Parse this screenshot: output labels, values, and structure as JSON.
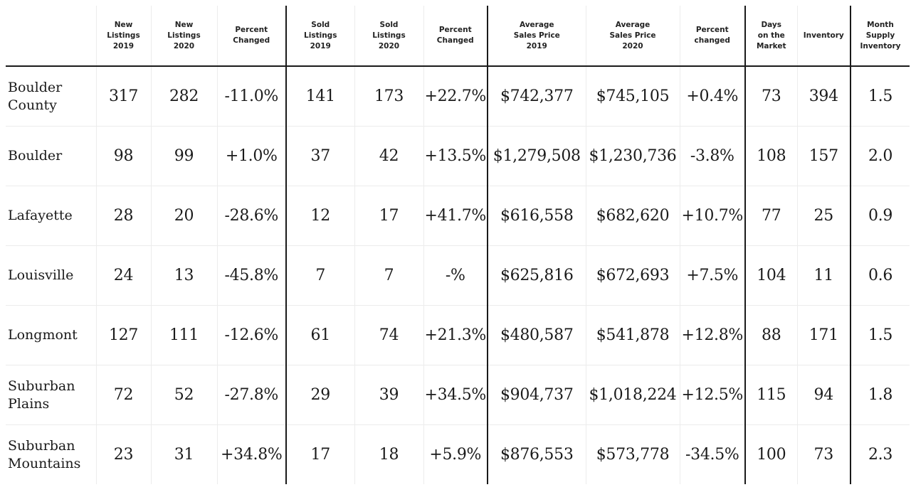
{
  "table": {
    "headers": [
      {
        "lines": []
      },
      {
        "lines": [
          "New",
          "Listings",
          "2019"
        ]
      },
      {
        "lines": [
          "New",
          "Listings",
          "2020"
        ]
      },
      {
        "lines": [
          "Percent",
          "Changed"
        ]
      },
      {
        "lines": [
          "Sold",
          "Listings",
          "2019"
        ]
      },
      {
        "lines": [
          "Sold",
          "Listings",
          "2020"
        ]
      },
      {
        "lines": [
          "Percent",
          "Changed"
        ]
      },
      {
        "lines": [
          "Average",
          "Sales Price",
          "2019"
        ]
      },
      {
        "lines": [
          "Average",
          "Sales Price",
          "2020"
        ]
      },
      {
        "lines": [
          "Percent",
          "changed"
        ]
      },
      {
        "lines": [
          "Days",
          "on the",
          "Market"
        ]
      },
      {
        "lines": [
          "Inventory"
        ]
      },
      {
        "lines": [
          "Month",
          "Supply",
          "Inventory"
        ]
      }
    ],
    "rows": [
      {
        "city": [
          "Boulder",
          "County"
        ],
        "values": [
          "317",
          "282",
          "-11.0%",
          "141",
          "173",
          "+22.7%",
          "$742,377",
          "$745,105",
          "+0.4%",
          "73",
          "394",
          "1.5"
        ]
      },
      {
        "city": [
          "Boulder"
        ],
        "values": [
          "98",
          "99",
          "+1.0%",
          "37",
          "42",
          "+13.5%",
          "$1,279,508",
          "$1,230,736",
          "-3.8%",
          "108",
          "157",
          "2.0"
        ]
      },
      {
        "city": [
          "Lafayette"
        ],
        "values": [
          "28",
          "20",
          "-28.6%",
          "12",
          "17",
          "+41.7%",
          "$616,558",
          "$682,620",
          "+10.7%",
          "77",
          "25",
          "0.9"
        ]
      },
      {
        "city": [
          "Louisville"
        ],
        "values": [
          "24",
          "13",
          "-45.8%",
          "7",
          "7",
          "-%",
          "$625,816",
          "$672,693",
          "+7.5%",
          "104",
          "11",
          "0.6"
        ]
      },
      {
        "city": [
          "Longmont"
        ],
        "values": [
          "127",
          "111",
          "-12.6%",
          "61",
          "74",
          "+21.3%",
          "$480,587",
          "$541,878",
          "+12.8%",
          "88",
          "171",
          "1.5"
        ]
      },
      {
        "city": [
          "Suburban",
          "Plains"
        ],
        "values": [
          "72",
          "52",
          "-27.8%",
          "29",
          "39",
          "+34.5%",
          "$904,737",
          "$1,018,224",
          "+12.5%",
          "115",
          "94",
          "1.8"
        ]
      },
      {
        "city": [
          "Suburban",
          "Mountains"
        ],
        "values": [
          "23",
          "31",
          "+34.8%",
          "17",
          "18",
          "+5.9%",
          "$876,553",
          "$573,778",
          "-34.5%",
          "100",
          "73",
          "2.3"
        ]
      }
    ]
  }
}
